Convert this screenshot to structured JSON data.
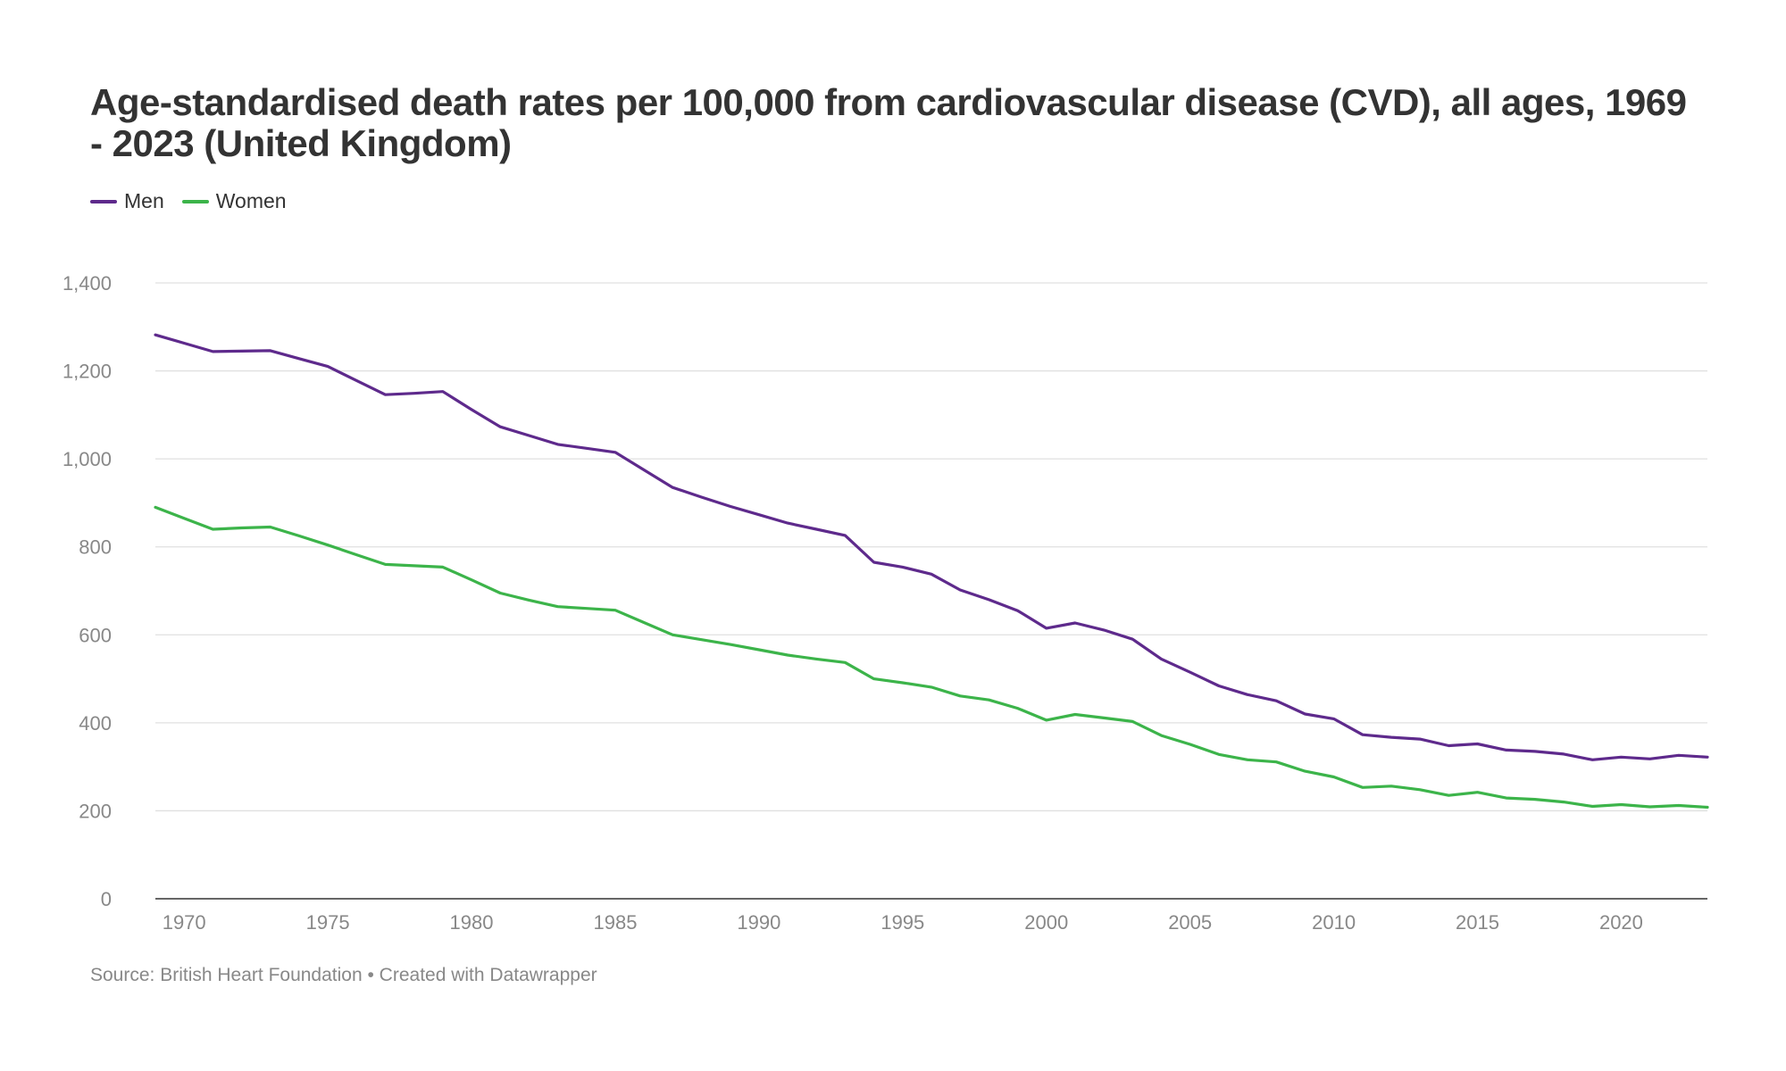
{
  "title": "Age-standardised death rates per 100,000 from cardiovascular disease (CVD), all ages, 1969 - 2023 (United Kingdom)",
  "source": "Source: British Heart Foundation • Created with Datawrapper",
  "chart_data": {
    "type": "line",
    "title": "Age-standardised death rates per 100,000 from cardiovascular disease (CVD), all ages, 1969 - 2023 (United Kingdom)",
    "xlabel": "",
    "ylabel": "",
    "xlim": [
      1969,
      2023
    ],
    "ylim": [
      0,
      1400
    ],
    "x_ticks": [
      1970,
      1975,
      1980,
      1985,
      1990,
      1995,
      2000,
      2005,
      2010,
      2015,
      2020
    ],
    "y_ticks": [
      0,
      200,
      400,
      600,
      800,
      1000,
      1200,
      1400
    ],
    "y_tick_labels": [
      "0",
      "200",
      "400",
      "600",
      "800",
      "1,000",
      "1,200",
      "1,400"
    ],
    "grid": true,
    "legend": "top-left",
    "x": [
      1969,
      1970,
      1971,
      1972,
      1973,
      1974,
      1975,
      1976,
      1977,
      1978,
      1979,
      1980,
      1981,
      1982,
      1983,
      1984,
      1985,
      1986,
      1987,
      1988,
      1989,
      1990,
      1991,
      1992,
      1993,
      1994,
      1995,
      1996,
      1997,
      1998,
      1999,
      2000,
      2001,
      2002,
      2003,
      2004,
      2005,
      2006,
      2007,
      2008,
      2009,
      2010,
      2011,
      2012,
      2013,
      2014,
      2015,
      2016,
      2017,
      2018,
      2019,
      2020,
      2021,
      2022,
      2023
    ],
    "series": [
      {
        "name": "Men",
        "color": "#5e2a8c",
        "values": [
          1282,
          1263,
          1244,
          1245,
          1246,
          1228,
          1210,
          1178,
          1146,
          1149,
          1153,
          1112,
          1073,
          1053,
          1033,
          1024,
          1015,
          975,
          935,
          913,
          892,
          873,
          854,
          840,
          826,
          765,
          754,
          738,
          702,
          680,
          655,
          615,
          627,
          611,
          590,
          545,
          515,
          484,
          464,
          450,
          420,
          409,
          373,
          367,
          363,
          348,
          352,
          338,
          335,
          329,
          316,
          322,
          318,
          326,
          322
        ]
      },
      {
        "name": "Women",
        "color": "#3cb44a",
        "values": [
          890,
          865,
          840,
          843,
          845,
          825,
          804,
          782,
          760,
          757,
          754,
          725,
          695,
          679,
          664,
          660,
          656,
          628,
          600,
          589,
          578,
          566,
          554,
          545,
          537,
          500,
          491,
          481,
          461,
          452,
          433,
          406,
          419,
          411,
          403,
          371,
          351,
          328,
          316,
          311,
          290,
          277,
          253,
          256,
          248,
          235,
          242,
          229,
          226,
          220,
          210,
          214,
          209,
          212,
          208
        ]
      }
    ]
  }
}
